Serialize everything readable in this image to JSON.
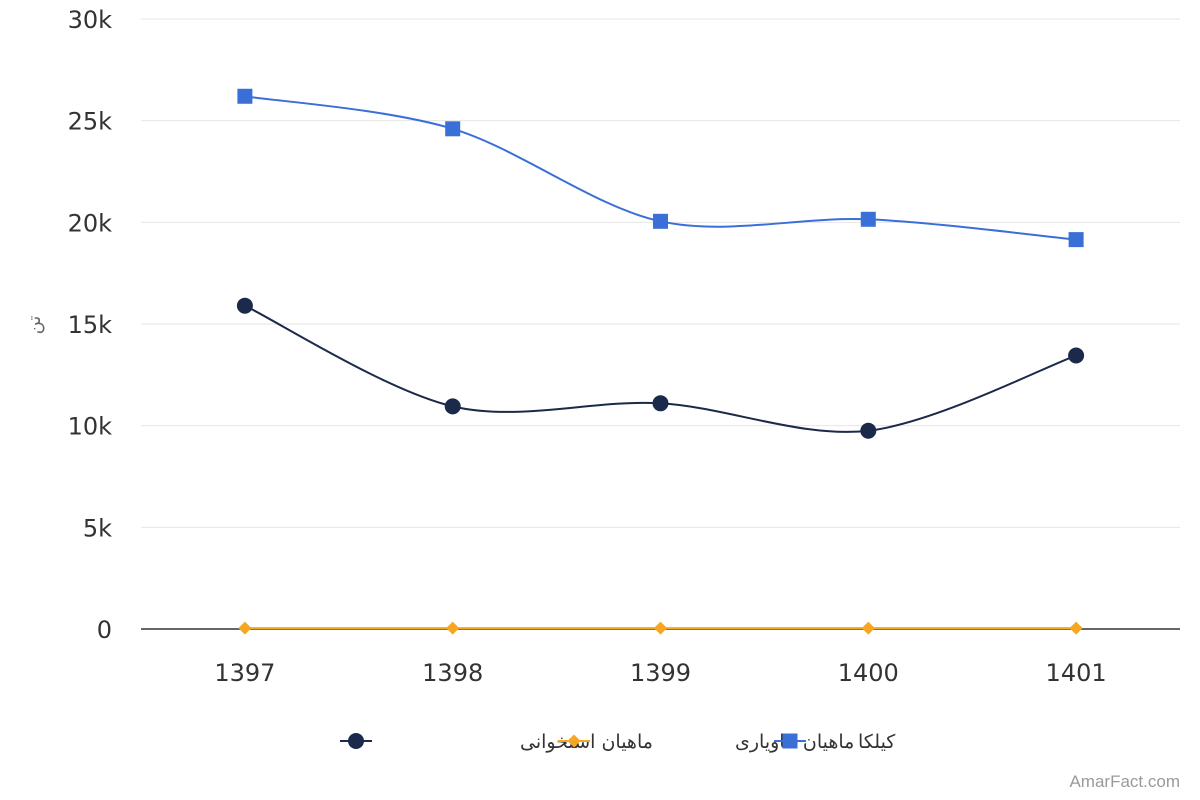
{
  "chart_data": {
    "type": "line",
    "ylabel": "تن",
    "ylim": [
      0,
      30000
    ],
    "yticks": [
      {
        "value": 0,
        "label": "0"
      },
      {
        "value": 5000,
        "label": "5k"
      },
      {
        "value": 10000,
        "label": "10k"
      },
      {
        "value": 15000,
        "label": "15k"
      },
      {
        "value": 20000,
        "label": "20k"
      },
      {
        "value": 25000,
        "label": "25k"
      },
      {
        "value": 30000,
        "label": "30k"
      }
    ],
    "categories": [
      "1397",
      "1398",
      "1399",
      "1400",
      "1401"
    ],
    "grid": true,
    "legend_position": "bottom",
    "series": [
      {
        "name": "ماهیان استخوانی",
        "color": "#1b2a4a",
        "marker": "circle",
        "values": [
          15900,
          10950,
          11100,
          9750,
          13450
        ]
      },
      {
        "name": "ماهیان خاویاری",
        "color": "#f5a623",
        "marker": "diamond",
        "values": [
          40,
          40,
          40,
          40,
          40
        ]
      },
      {
        "name": "کیلکا",
        "color": "#3a6fd8",
        "marker": "square",
        "values": [
          26200,
          24600,
          20050,
          20150,
          19150
        ]
      }
    ]
  },
  "credit": "AmarFact.com"
}
